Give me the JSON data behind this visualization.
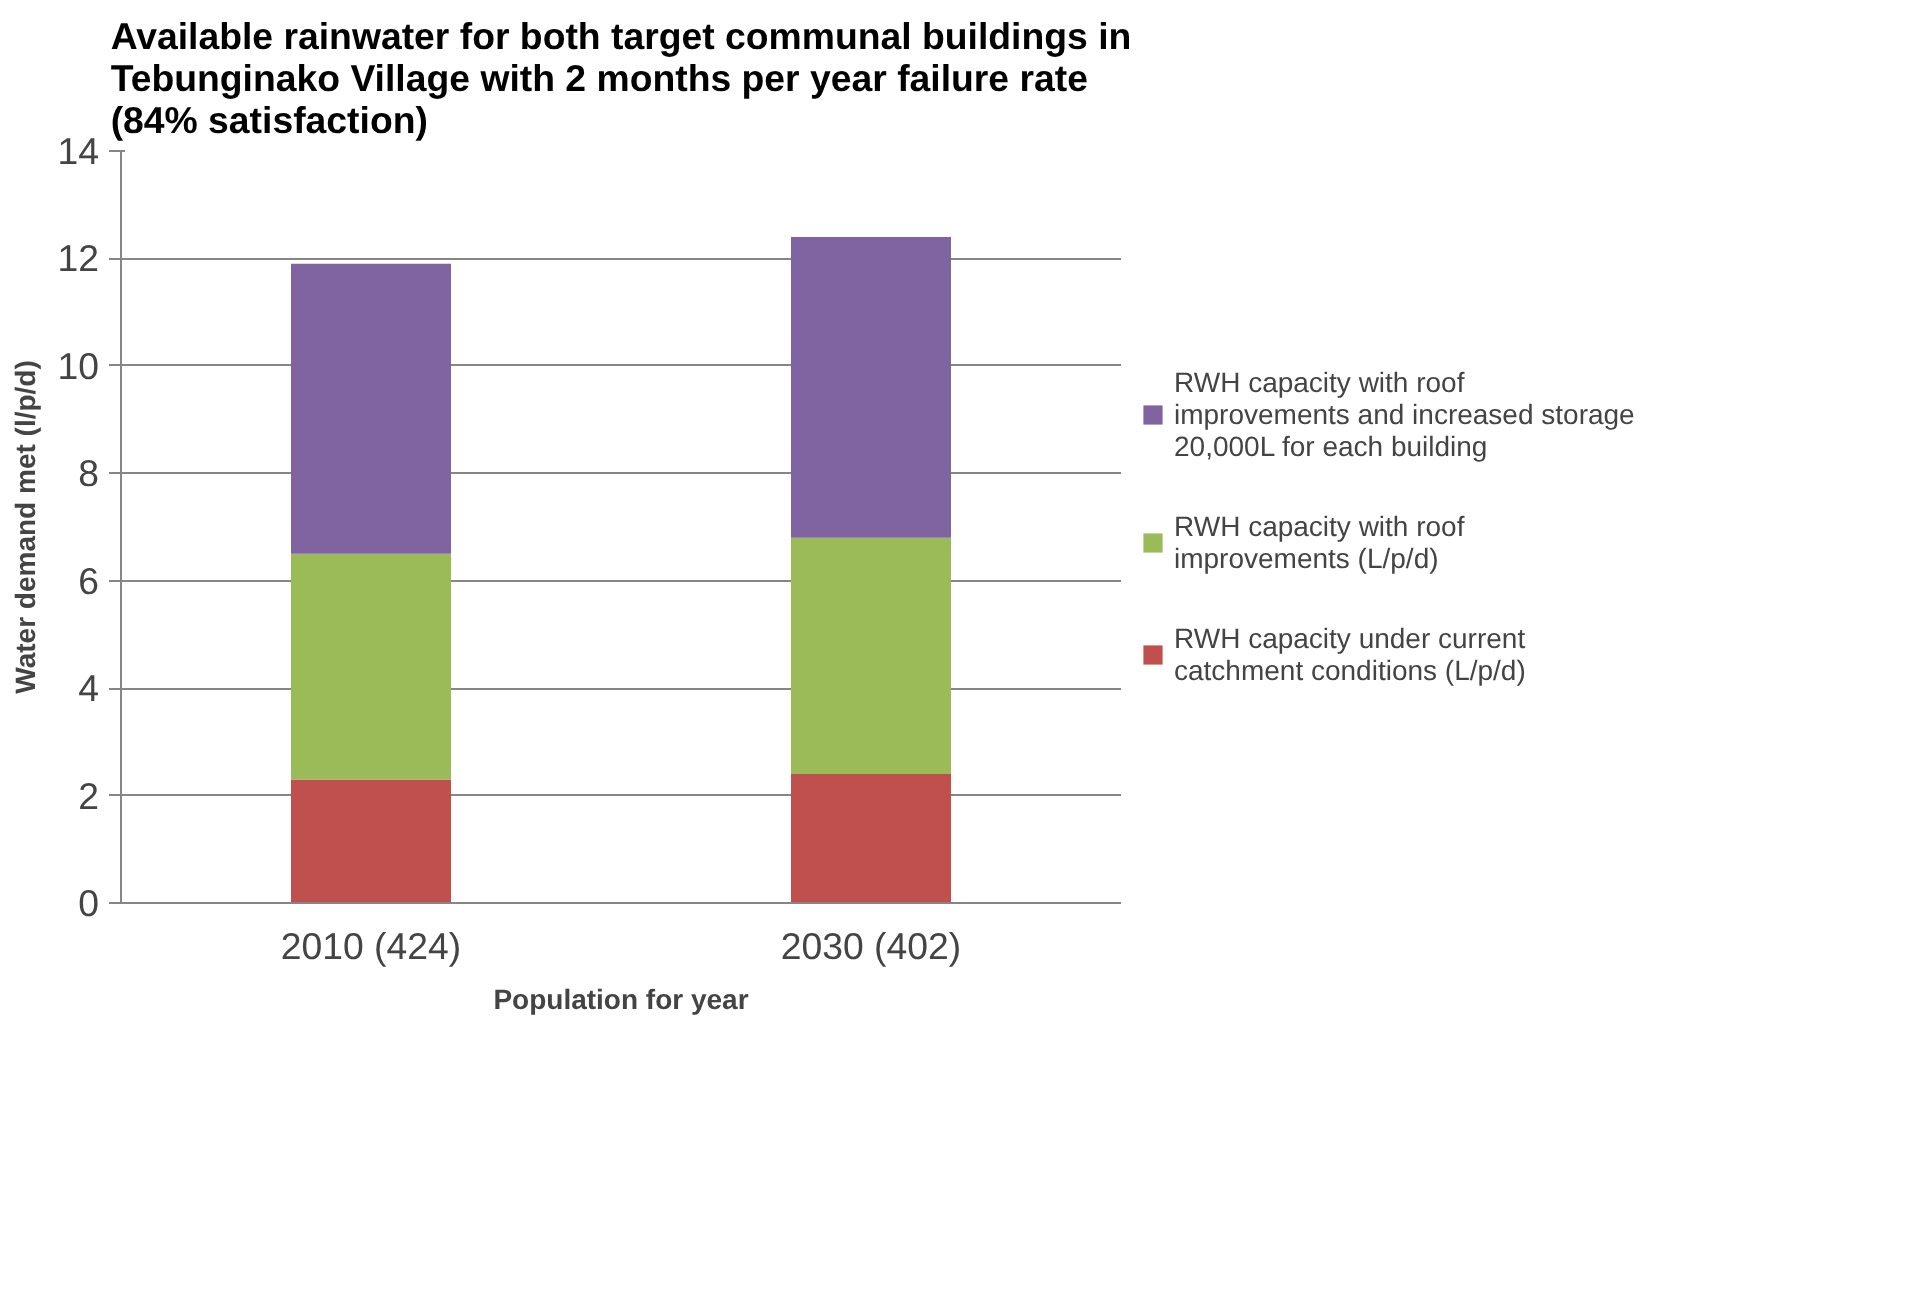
{
  "chart_data": {
    "type": "bar",
    "stacked": true,
    "title": "Available rainwater for both target communal buildings in Tebunginako Village with 2 months per year failure rate (84% satisfaction)",
    "xlabel": "Population for year",
    "ylabel": "Water demand met (l/p/d)",
    "categories": [
      "2010 (424)",
      "2030 (402)"
    ],
    "series": [
      {
        "name": "RWH capacity under current catchment conditions (L/p/d)",
        "color": "#c0504d",
        "values": [
          2.3,
          2.4
        ]
      },
      {
        "name": "RWH capacity with roof improvements (L/p/d)",
        "color": "#9bbb59",
        "values": [
          4.2,
          4.4
        ]
      },
      {
        "name": "RWH capacity with roof improvements and increased storage 20,000L for each building",
        "color": "#8064a2",
        "values": [
          5.4,
          5.6
        ]
      }
    ],
    "ylim": [
      0,
      14
    ],
    "yticks": [
      0,
      2,
      4,
      6,
      8,
      10,
      12,
      14
    ],
    "grid": "y",
    "legend": "right"
  }
}
